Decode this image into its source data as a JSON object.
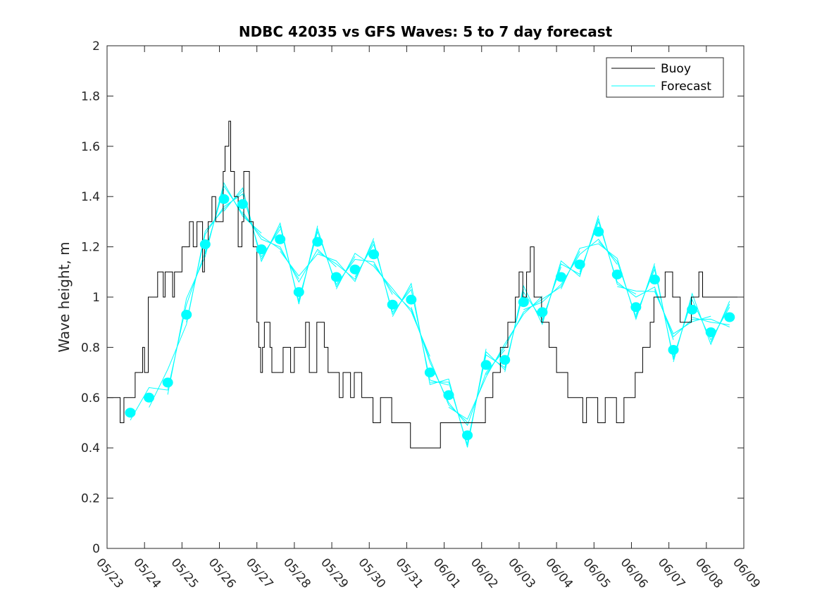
{
  "chart_data": {
    "type": "line",
    "title": "NDBC 42035 vs GFS Waves: 5 to 7 day forecast",
    "xlabel": "",
    "ylabel": "Wave height, m",
    "ylim": [
      0,
      2
    ],
    "yticks": [
      "0",
      "0.2",
      "0.4",
      "0.6",
      "0.8",
      "1",
      "1.2",
      "1.4",
      "1.6",
      "1.8",
      "2"
    ],
    "ytick_values": [
      0,
      0.2,
      0.4,
      0.6,
      0.8,
      1.0,
      1.2,
      1.4,
      1.6,
      1.8,
      2.0
    ],
    "xlim_days": [
      0,
      17
    ],
    "xticks": [
      "05/23",
      "05/24",
      "05/25",
      "05/26",
      "05/27",
      "05/28",
      "05/29",
      "05/30",
      "05/31",
      "06/01",
      "06/02",
      "06/03",
      "06/04",
      "06/05",
      "06/06",
      "06/07",
      "06/08",
      "06/09"
    ],
    "grid": false,
    "legend": {
      "position": "top-right",
      "entries": [
        {
          "label": "Buoy",
          "color": "#000000"
        },
        {
          "label": "Forecast",
          "color": "#00FFFF"
        }
      ]
    },
    "series": [
      {
        "name": "Buoy",
        "color": "#000000",
        "x_days": [
          0,
          0.3,
          0.35,
          0.45,
          0.7,
          0.75,
          0.9,
          0.95,
          1.0,
          1.1,
          1.2,
          1.3,
          1.35,
          1.5,
          1.55,
          1.7,
          1.75,
          1.8,
          1.95,
          2.0,
          2.1,
          2.2,
          2.3,
          2.4,
          2.5,
          2.55,
          2.6,
          2.7,
          2.8,
          2.9,
          3.0,
          3.1,
          3.15,
          3.25,
          3.3,
          3.4,
          3.5,
          3.6,
          3.65,
          3.7,
          3.8,
          3.9,
          4.0,
          4.05,
          4.1,
          4.15,
          4.2,
          4.3,
          4.35,
          4.4,
          4.5,
          4.6,
          4.7,
          4.8,
          4.9,
          5.0,
          5.1,
          5.2,
          5.3,
          5.4,
          5.5,
          5.6,
          5.7,
          5.75,
          5.8,
          5.9,
          6.0,
          6.1,
          6.2,
          6.3,
          6.4,
          6.5,
          6.6,
          6.7,
          6.8,
          6.9,
          7.0,
          7.1,
          7.2,
          7.3,
          7.4,
          7.5,
          7.6,
          7.7,
          7.8,
          7.9,
          8.0,
          8.1,
          8.2,
          8.3,
          8.4,
          8.5,
          8.6,
          8.7,
          8.8,
          8.9,
          9.0,
          9.2,
          9.4,
          9.6,
          9.8,
          10.0,
          10.1,
          10.2,
          10.3,
          10.4,
          10.5,
          10.6,
          10.7,
          10.8,
          10.9,
          11.0,
          11.1,
          11.2,
          11.3,
          11.4,
          11.5,
          11.6,
          11.7,
          11.8,
          11.9,
          12.0,
          12.1,
          12.2,
          12.3,
          12.4,
          12.5,
          12.6,
          12.7,
          12.8,
          12.9,
          13.0,
          13.1,
          13.2,
          13.3,
          13.4,
          13.5,
          13.6,
          13.7,
          13.8,
          13.9,
          14.0,
          14.1,
          14.2,
          14.3,
          14.4,
          14.5,
          14.6,
          14.7,
          14.8,
          14.9,
          15.0,
          15.1,
          15.2,
          15.3,
          15.4,
          15.5,
          15.6,
          15.7,
          15.8,
          15.9,
          16.0,
          16.1,
          16.2,
          16.3,
          16.4,
          16.5,
          16.6,
          16.7,
          16.8,
          16.9,
          17.0
        ],
        "values": [
          0.6,
          0.6,
          0.5,
          0.6,
          0.6,
          0.7,
          0.7,
          0.8,
          0.7,
          1.0,
          1.0,
          1.0,
          1.1,
          1.0,
          1.1,
          1.1,
          1.0,
          1.1,
          1.1,
          1.2,
          1.2,
          1.3,
          1.2,
          1.3,
          1.3,
          1.1,
          1.2,
          1.3,
          1.4,
          1.3,
          1.3,
          1.5,
          1.6,
          1.7,
          1.5,
          1.4,
          1.2,
          1.3,
          1.5,
          1.5,
          1.3,
          1.2,
          0.9,
          0.8,
          0.7,
          0.8,
          0.9,
          0.9,
          0.8,
          0.7,
          0.7,
          0.7,
          0.8,
          0.8,
          0.7,
          0.8,
          0.8,
          0.8,
          0.9,
          0.7,
          0.7,
          0.9,
          0.9,
          0.9,
          0.8,
          0.7,
          0.7,
          0.7,
          0.6,
          0.7,
          0.7,
          0.6,
          0.7,
          0.7,
          0.6,
          0.6,
          0.6,
          0.5,
          0.5,
          0.6,
          0.6,
          0.6,
          0.5,
          0.5,
          0.5,
          0.5,
          0.5,
          0.4,
          0.4,
          0.4,
          0.4,
          0.4,
          0.4,
          0.4,
          0.4,
          0.5,
          0.5,
          0.5,
          0.5,
          0.5,
          0.5,
          0.5,
          0.6,
          0.6,
          0.7,
          0.7,
          0.8,
          0.8,
          0.9,
          0.9,
          1.0,
          1.1,
          1.0,
          1.1,
          1.2,
          1.0,
          1.0,
          0.9,
          0.9,
          0.8,
          0.8,
          0.7,
          0.7,
          0.7,
          0.6,
          0.6,
          0.6,
          0.6,
          0.5,
          0.6,
          0.6,
          0.6,
          0.5,
          0.5,
          0.6,
          0.6,
          0.6,
          0.5,
          0.5,
          0.6,
          0.6,
          0.6,
          0.7,
          0.7,
          0.8,
          0.8,
          0.9,
          1.0,
          1.0,
          1.0,
          1.1,
          1.1,
          1.0,
          1.0,
          0.9,
          0.9,
          0.9,
          1.0,
          1.0,
          1.1,
          1.0,
          1.0,
          1.0,
          1.0,
          1.0,
          1.0,
          1.0,
          1.0,
          1.0,
          1.0,
          1.0,
          1.0
        ]
      },
      {
        "name": "Forecast (markers, run initial points)",
        "color": "#00FFFF",
        "x_days": [
          0.62,
          1.12,
          1.62,
          2.12,
          2.62,
          3.12,
          3.62,
          4.12,
          4.62,
          5.12,
          5.62,
          6.12,
          6.62,
          7.12,
          7.62,
          8.12,
          8.62,
          9.12,
          9.62,
          10.12,
          10.62,
          11.12,
          11.62,
          12.12,
          12.62,
          13.12,
          13.62,
          14.12,
          14.62,
          15.12,
          15.62,
          16.12,
          16.62
        ],
        "values": [
          0.54,
          0.6,
          0.66,
          0.93,
          1.21,
          1.39,
          1.37,
          1.19,
          1.23,
          1.02,
          1.22,
          1.08,
          1.11,
          1.17,
          0.97,
          0.99,
          0.7,
          0.61,
          0.45,
          0.73,
          0.75,
          0.98,
          0.94,
          1.08,
          1.13,
          1.26,
          1.09,
          0.96,
          1.07,
          0.79,
          0.95,
          0.86,
          0.92
        ]
      }
    ]
  }
}
